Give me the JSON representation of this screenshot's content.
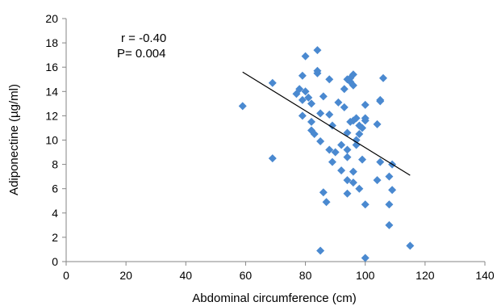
{
  "chart_data": {
    "type": "scatter",
    "xlabel": "Abdominal circumference (cm)",
    "ylabel": "Adiponectine (µg/ml)",
    "xlim": [
      0,
      140
    ],
    "ylim": [
      0,
      20
    ],
    "xticks": [
      0,
      20,
      40,
      60,
      80,
      100,
      120,
      140
    ],
    "yticks": [
      0,
      2,
      4,
      6,
      8,
      10,
      12,
      14,
      16,
      18,
      20
    ],
    "grid": false,
    "marker": "diamond",
    "marker_color": "#4a89d0",
    "annotations": [
      "r = -0.40",
      "P= 0.004"
    ],
    "trendline": {
      "x": [
        59,
        115
      ],
      "y": [
        15.6,
        7.1
      ]
    },
    "points": [
      [
        59,
        12.8
      ],
      [
        69,
        14.7
      ],
      [
        69,
        8.5
      ],
      [
        77,
        13.8
      ],
      [
        78,
        14.2
      ],
      [
        79,
        13.3
      ],
      [
        79,
        15.3
      ],
      [
        79,
        12.0
      ],
      [
        80,
        16.9
      ],
      [
        80,
        14.0
      ],
      [
        81,
        13.5
      ],
      [
        82,
        11.5
      ],
      [
        82,
        13.0
      ],
      [
        82,
        10.8
      ],
      [
        83,
        10.5
      ],
      [
        84,
        17.4
      ],
      [
        84,
        15.5
      ],
      [
        84,
        15.7
      ],
      [
        85,
        12.2
      ],
      [
        85,
        9.9
      ],
      [
        86,
        13.6
      ],
      [
        86,
        5.7
      ],
      [
        85,
        0.9
      ],
      [
        87,
        4.9
      ],
      [
        88,
        15.0
      ],
      [
        88,
        12.1
      ],
      [
        88,
        9.2
      ],
      [
        89,
        11.2
      ],
      [
        89,
        8.2
      ],
      [
        90,
        9.0
      ],
      [
        91,
        13.1
      ],
      [
        92,
        9.6
      ],
      [
        92,
        7.5
      ],
      [
        93,
        12.7
      ],
      [
        93,
        14.2
      ],
      [
        94,
        15.0
      ],
      [
        94,
        9.2
      ],
      [
        94,
        8.6
      ],
      [
        94,
        10.6
      ],
      [
        94,
        6.7
      ],
      [
        94,
        5.6
      ],
      [
        95,
        11.5
      ],
      [
        95,
        14.8
      ],
      [
        95,
        15.1
      ],
      [
        96,
        15.4
      ],
      [
        96,
        14.5
      ],
      [
        96,
        11.6
      ],
      [
        96,
        7.4
      ],
      [
        96,
        6.5
      ],
      [
        97,
        9.6
      ],
      [
        97,
        10.0
      ],
      [
        97,
        11.8
      ],
      [
        98,
        11.2
      ],
      [
        98,
        10.5
      ],
      [
        98,
        6.0
      ],
      [
        99,
        8.4
      ],
      [
        99,
        11.0
      ],
      [
        100,
        11.6
      ],
      [
        100,
        11.8
      ],
      [
        100,
        12.9
      ],
      [
        100,
        4.7
      ],
      [
        100,
        0.3
      ],
      [
        104,
        11.3
      ],
      [
        104,
        6.7
      ],
      [
        105,
        13.3
      ],
      [
        105,
        13.2
      ],
      [
        105,
        8.2
      ],
      [
        106,
        15.1
      ],
      [
        108,
        7.0
      ],
      [
        108,
        4.7
      ],
      [
        108,
        3.0
      ],
      [
        109,
        8.0
      ],
      [
        109,
        5.9
      ],
      [
        115,
        1.3
      ]
    ]
  }
}
